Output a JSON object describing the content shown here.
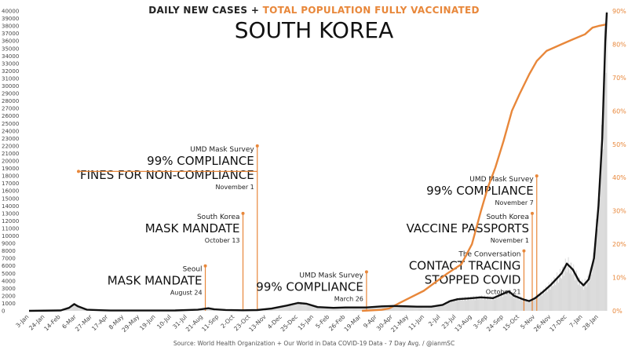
{
  "header": {
    "subtitle_part1": "DAILY NEW CASES + ",
    "subtitle_part2": "TOTAL POPULATION FULLY VACCINATED",
    "title": "SOUTH KOREA"
  },
  "source": "Source: World Health Organization  + Our World in Data COVID-19 Data - 7 Day Avg. / @ianmSC",
  "colors": {
    "cases": "#111111",
    "vaccinated": "#e8873a",
    "bars": "#d6d6d6",
    "background": "#ffffff"
  },
  "chart_data": {
    "type": "line",
    "title": "SOUTH KOREA",
    "subtitle": "DAILY NEW CASES + TOTAL POPULATION FULLY VACCINATED",
    "x_axis": {
      "scale": "date",
      "range": [
        "2020-01-03",
        "2022-02-08"
      ]
    },
    "x_ticks": [
      "3-Jan",
      "24-Jan",
      "14-Feb",
      "6-Mar",
      "27-Mar",
      "17-Apr",
      "8-May",
      "29-May",
      "19-Jun",
      "10-Jul",
      "31-Jul",
      "21-Aug",
      "11-Sep",
      "2-Oct",
      "23-Oct",
      "13-Nov",
      "4-Dec",
      "25-Dec",
      "15-Jan",
      "5-Feb",
      "26-Feb",
      "19-Mar",
      "9-Apr",
      "30-Apr",
      "21-May",
      "11-Jun",
      "2-Jul",
      "23-Jul",
      "13-Aug",
      "3-Sep",
      "24-Sep",
      "15-Oct",
      "5-Nov",
      "26-Nov",
      "17-Dec",
      "7-Jan",
      "28-Jan"
    ],
    "x_tick_dates": [
      "2020-01-03",
      "2020-01-24",
      "2020-02-14",
      "2020-03-06",
      "2020-03-27",
      "2020-04-17",
      "2020-05-08",
      "2020-05-29",
      "2020-06-19",
      "2020-07-10",
      "2020-07-31",
      "2020-08-21",
      "2020-09-11",
      "2020-10-02",
      "2020-10-23",
      "2020-11-13",
      "2020-12-04",
      "2020-12-25",
      "2021-01-15",
      "2021-02-05",
      "2021-02-26",
      "2021-03-19",
      "2021-04-09",
      "2021-04-30",
      "2021-05-21",
      "2021-06-11",
      "2021-07-02",
      "2021-07-23",
      "2021-08-13",
      "2021-09-03",
      "2021-09-24",
      "2021-10-15",
      "2021-11-05",
      "2021-11-26",
      "2021-12-17",
      "2022-01-07",
      "2022-01-28"
    ],
    "y_left": {
      "label": "",
      "range": [
        0,
        40000
      ],
      "ticks": [
        0,
        1000,
        2000,
        3000,
        4000,
        5000,
        6000,
        7000,
        8000,
        9000,
        10000,
        11000,
        12000,
        13000,
        14000,
        15000,
        16000,
        17000,
        18000,
        19000,
        20000,
        21000,
        22000,
        23000,
        24000,
        25000,
        26000,
        27000,
        28000,
        29000,
        30000,
        31000,
        32000,
        33000,
        34000,
        35000,
        36000,
        37000,
        38000,
        39000,
        40000
      ]
    },
    "y_right": {
      "label": "",
      "range": [
        0,
        90
      ],
      "ticks": [
        "0%",
        "10%",
        "20%",
        "30%",
        "40%",
        "50%",
        "60%",
        "70%",
        "80%",
        "90%"
      ],
      "tick_values": [
        0,
        10,
        20,
        30,
        40,
        50,
        60,
        70,
        80,
        90
      ]
    },
    "grid": false,
    "series": [
      {
        "name": "Daily new cases",
        "axis": "left",
        "points": [
          [
            "2020-01-03",
            0
          ],
          [
            "2020-02-14",
            50
          ],
          [
            "2020-02-25",
            400
          ],
          [
            "2020-03-03",
            900
          ],
          [
            "2020-03-08",
            600
          ],
          [
            "2020-03-20",
            150
          ],
          [
            "2020-04-20",
            40
          ],
          [
            "2020-06-01",
            40
          ],
          [
            "2020-07-15",
            50
          ],
          [
            "2020-08-14",
            150
          ],
          [
            "2020-08-28",
            350
          ],
          [
            "2020-09-05",
            200
          ],
          [
            "2020-09-20",
            120
          ],
          [
            "2020-10-13",
            70
          ],
          [
            "2020-11-01",
            100
          ],
          [
            "2020-11-20",
            300
          ],
          [
            "2020-12-10",
            700
          ],
          [
            "2020-12-25",
            1050
          ],
          [
            "2021-01-05",
            950
          ],
          [
            "2021-01-20",
            500
          ],
          [
            "2021-02-10",
            400
          ],
          [
            "2021-02-26",
            450
          ],
          [
            "2021-03-26",
            450
          ],
          [
            "2021-04-15",
            600
          ],
          [
            "2021-05-01",
            650
          ],
          [
            "2021-06-01",
            550
          ],
          [
            "2021-06-20",
            550
          ],
          [
            "2021-07-05",
            800
          ],
          [
            "2021-07-15",
            1300
          ],
          [
            "2021-07-25",
            1550
          ],
          [
            "2021-08-13",
            1700
          ],
          [
            "2021-08-25",
            1800
          ],
          [
            "2021-09-10",
            1700
          ],
          [
            "2021-09-24",
            2300
          ],
          [
            "2021-10-01",
            2600
          ],
          [
            "2021-10-08",
            2000
          ],
          [
            "2021-10-21",
            1500
          ],
          [
            "2021-10-28",
            1300
          ],
          [
            "2021-11-05",
            1700
          ],
          [
            "2021-11-15",
            2500
          ],
          [
            "2021-11-26",
            3500
          ],
          [
            "2021-12-10",
            5000
          ],
          [
            "2021-12-17",
            6300
          ],
          [
            "2021-12-25",
            5500
          ],
          [
            "2022-01-02",
            4000
          ],
          [
            "2022-01-08",
            3400
          ],
          [
            "2022-01-15",
            4200
          ],
          [
            "2022-01-22",
            7000
          ],
          [
            "2022-01-28",
            14000
          ],
          [
            "2022-02-02",
            23000
          ],
          [
            "2022-02-06",
            36000
          ],
          [
            "2022-02-08",
            39800
          ]
        ]
      },
      {
        "name": "Total population fully vaccinated (%)",
        "axis": "right",
        "points": [
          [
            "2021-03-20",
            0
          ],
          [
            "2021-04-15",
            0.3
          ],
          [
            "2021-04-25",
            0.7
          ],
          [
            "2021-05-10",
            2.5
          ],
          [
            "2021-06-10",
            6
          ],
          [
            "2021-07-10",
            11
          ],
          [
            "2021-07-30",
            14
          ],
          [
            "2021-08-13",
            20
          ],
          [
            "2021-08-25",
            30
          ],
          [
            "2021-09-03",
            37
          ],
          [
            "2021-09-13",
            43
          ],
          [
            "2021-09-24",
            51
          ],
          [
            "2021-10-05",
            60
          ],
          [
            "2021-10-15",
            65
          ],
          [
            "2021-10-28",
            71
          ],
          [
            "2021-11-07",
            75
          ],
          [
            "2021-11-20",
            78
          ],
          [
            "2021-12-10",
            80
          ],
          [
            "2021-12-25",
            81.5
          ],
          [
            "2022-01-10",
            83
          ],
          [
            "2022-01-20",
            85
          ],
          [
            "2022-01-28",
            85.5
          ],
          [
            "2022-02-08",
            86
          ]
        ]
      }
    ],
    "annotations": [
      {
        "id": "a1",
        "date": "2020-08-24",
        "value": 6000,
        "lines": [
          "Seoul",
          "MASK MANDATE",
          "August 24"
        ]
      },
      {
        "id": "a2",
        "date": "2020-10-13",
        "value": 13000,
        "lines": [
          "South Korea",
          "MASK MANDATE",
          "October 13"
        ]
      },
      {
        "id": "a3",
        "date": "2020-11-01",
        "value": 22000,
        "lines": [
          "UMD Mask Survey",
          "99% COMPLIANCE",
          "FINES FOR NON-COMPLIANCE",
          "November 1"
        ]
      },
      {
        "id": "a4",
        "date": "2021-03-26",
        "value": 5200,
        "lines": [
          "UMD Mask Survey",
          "99% COMPLIANCE",
          "March 26"
        ]
      },
      {
        "id": "a5",
        "date": "2021-10-21",
        "value": 8000,
        "lines": [
          "The Conversation",
          "CONTACT TRACING",
          "STOPPED COVID",
          "October 21"
        ]
      },
      {
        "id": "a6",
        "date": "2021-11-01",
        "value": 13000,
        "lines": [
          "South Korea",
          "VACCINE PASSPORTS",
          "November 1"
        ]
      },
      {
        "id": "a7",
        "date": "2021-11-07",
        "value": 18000,
        "lines": [
          "UMD Mask Survey",
          "99% COMPLIANCE",
          "November 7"
        ]
      }
    ]
  }
}
